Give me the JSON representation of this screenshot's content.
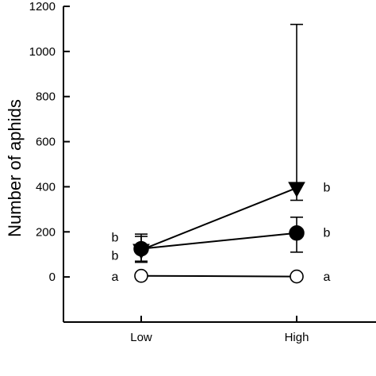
{
  "chart_data": {
    "type": "line",
    "title": "",
    "xlabel": "",
    "ylabel": "Number of aphids",
    "categories": [
      "Low",
      "High"
    ],
    "ylim": [
      -200,
      1200
    ],
    "yticks": [
      0,
      200,
      400,
      600,
      800,
      1000,
      1200
    ],
    "grid": false,
    "legend": "none",
    "series": [
      {
        "marker": "triangle-down-filled",
        "values": [
          120,
          395
        ],
        "error_low": [
          65,
          340
        ],
        "error_high": [
          190,
          1120
        ],
        "letters": [
          "b",
          "b"
        ]
      },
      {
        "marker": "circle-filled",
        "values": [
          125,
          195
        ],
        "error_low": [
          70,
          110
        ],
        "error_high": [
          180,
          265
        ],
        "letters": [
          "b",
          "b"
        ]
      },
      {
        "marker": "circle-open",
        "values": [
          5,
          2
        ],
        "error_low": [
          0,
          0
        ],
        "error_high": [
          10,
          5
        ],
        "letters": [
          "a",
          "a"
        ]
      }
    ]
  }
}
